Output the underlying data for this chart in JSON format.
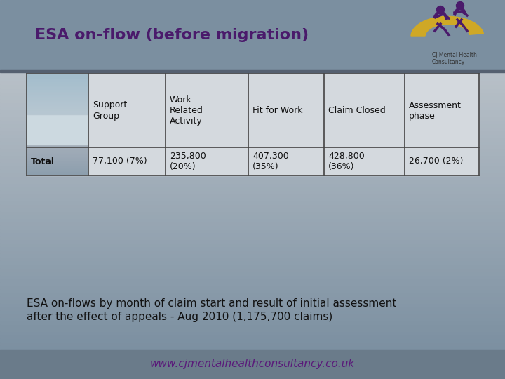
{
  "title": "ESA on-flow (before migration)",
  "title_color": "#4a1a6b",
  "header_bg": "#7b8fa0",
  "slide_bg_top": "#7b8fa0",
  "slide_bg_bottom": "#c8cdd2",
  "content_bg": "#c8cdd2",
  "table_headers": [
    "",
    "Support\nGroup",
    "Work\nRelated\nActivity",
    "Fit for Work",
    "Claim Closed",
    "Assessment\nphase"
  ],
  "table_row_label": "Total",
  "table_row_data": [
    "77,100 (7%)",
    "235,800\n(20%)",
    "407,300\n(35%)",
    "428,800\n(36%)",
    "26,700 (2%)"
  ],
  "footer_text": "www.cjmentalhealthconsultancy.co.uk",
  "footer_bg": "#6a7b8a",
  "footer_color": "#5a1a7a",
  "caption": "ESA on-flows by month of claim start and result of initial assessment\nafter the effect of appeals - Aug 2010 (1,175,700 claims)",
  "caption_color": "#111111",
  "table_border_color": "#444444",
  "table_text_color": "#111111",
  "table_bg": "#d0d5da",
  "photo_col_bg_top": "#b0bec8",
  "photo_col_bg_bottom": "#e8ecef",
  "title_fontsize": 16,
  "table_fontsize": 9,
  "caption_fontsize": 11,
  "footer_fontsize": 11
}
